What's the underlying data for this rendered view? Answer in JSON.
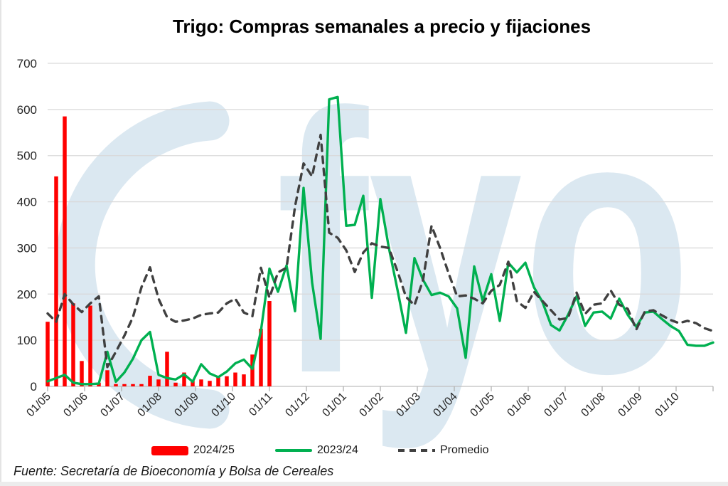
{
  "title": "Trigo: Compras semanales a precio y fijaciones",
  "source_note": "Fuente: Secretaría de Bioeconomía y Bolsa de Cereales",
  "watermark": {
    "text": "fyo",
    "color": "#dbe8f1"
  },
  "legend": [
    {
      "label": "2024/25"
    },
    {
      "label": "2023/24"
    },
    {
      "label": "Promedio"
    }
  ],
  "axes": {
    "y_tick_labels": [
      "0",
      "100",
      "200",
      "300",
      "400",
      "500",
      "600",
      "700"
    ],
    "x_tick_labels": [
      "01/05",
      "01/06",
      "01/07",
      "01/08",
      "01/09",
      "01/10",
      "01/11",
      "01/12",
      "01/01",
      "01/02",
      "01/03",
      "01/04",
      "01/05",
      "01/06",
      "01/07",
      "01/08",
      "01/09",
      "01/10"
    ]
  },
  "chart_data": {
    "type": "bar+line",
    "x_unit": "weeks",
    "n_points": 79,
    "x_tick_labels": [
      "01/05",
      "01/06",
      "01/07",
      "01/08",
      "01/09",
      "01/10",
      "01/11",
      "01/12",
      "01/01",
      "01/02",
      "01/03",
      "01/04",
      "01/05",
      "01/06",
      "01/07",
      "01/08",
      "01/09",
      "01/10"
    ],
    "title": "Trigo: Compras semanales a precio y fijaciones",
    "ylim": [
      0,
      700
    ],
    "ytick_step": 100,
    "grid": true,
    "legend_position": "bottom",
    "series": [
      {
        "name": "2024/25",
        "type": "bar",
        "color": "#ff0000",
        "values": [
          140,
          455,
          585,
          180,
          55,
          175,
          8,
          35,
          5,
          5,
          5,
          5,
          23,
          15,
          75,
          8,
          30,
          12,
          15,
          12,
          20,
          22,
          30,
          26,
          69,
          125,
          185
        ]
      },
      {
        "name": "2023/24",
        "type": "line",
        "color": "#00b050",
        "values": [
          11,
          18,
          25,
          8,
          5,
          5,
          6,
          75,
          10,
          30,
          60,
          100,
          118,
          25,
          18,
          15,
          26,
          10,
          48,
          28,
          20,
          32,
          50,
          58,
          38,
          120,
          255,
          205,
          262,
          163,
          430,
          225,
          103,
          622,
          627,
          348,
          350,
          413,
          192,
          406,
          300,
          210,
          116,
          278,
          231,
          198,
          203,
          195,
          169,
          62,
          260,
          185,
          243,
          142,
          268,
          247,
          268,
          215,
          183,
          133,
          121,
          155,
          195,
          131,
          160,
          162,
          147,
          190,
          155,
          129,
          160,
          162,
          146,
          131,
          120,
          90,
          88,
          88,
          95
        ]
      },
      {
        "name": "Promedio",
        "type": "dashed-line",
        "color": "#404040",
        "values": [
          158,
          140,
          200,
          178,
          161,
          180,
          195,
          42,
          75,
          110,
          150,
          215,
          258,
          190,
          150,
          140,
          143,
          147,
          155,
          158,
          160,
          180,
          190,
          160,
          152,
          257,
          192,
          247,
          257,
          390,
          483,
          455,
          545,
          333,
          322,
          295,
          248,
          290,
          310,
          303,
          300,
          250,
          194,
          176,
          230,
          348,
          300,
          245,
          195,
          197,
          190,
          180,
          207,
          220,
          270,
          185,
          170,
          205,
          185,
          165,
          145,
          148,
          203,
          157,
          177,
          180,
          208,
          177,
          168,
          123,
          162,
          165,
          154,
          144,
          137,
          142,
          137,
          126,
          120
        ]
      }
    ]
  }
}
